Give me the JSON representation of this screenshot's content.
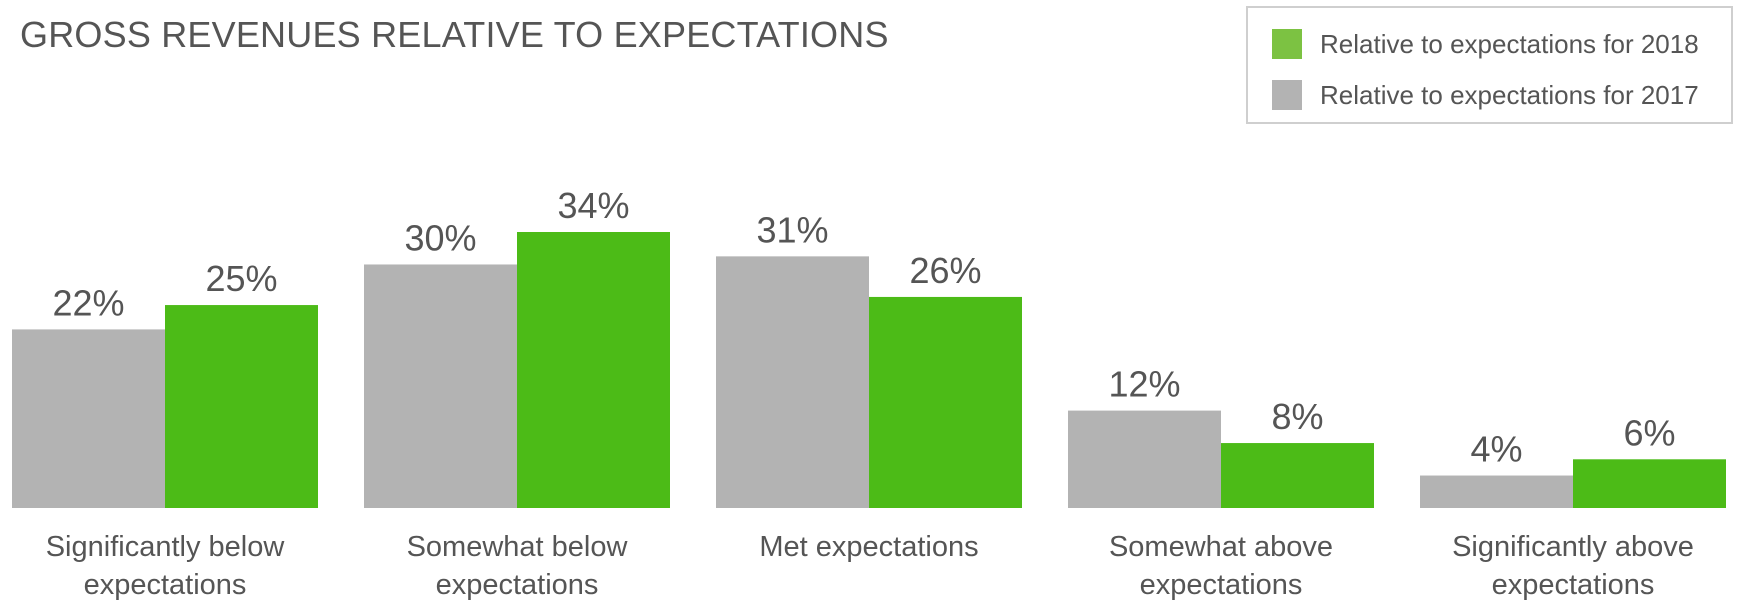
{
  "chart_data": {
    "type": "bar",
    "title": "GROSS REVENUES RELATIVE TO EXPECTATIONS",
    "xlabel": "",
    "ylabel": "",
    "ylim": [
      0,
      34
    ],
    "unit": "%",
    "categories": [
      [
        "Significantly below",
        "expectations"
      ],
      [
        "Somewhat below",
        "expectations"
      ],
      [
        "Met expectations"
      ],
      [
        "Somewhat above",
        "expectations"
      ],
      [
        "Significantly above",
        "expectations"
      ]
    ],
    "series": [
      {
        "name": "Relative to expectations for 2017",
        "color": "#b3b3b3",
        "values": [
          22,
          30,
          31,
          12,
          4
        ]
      },
      {
        "name": "Relative to expectations for 2018",
        "color": "#4cbb17",
        "values": [
          25,
          34,
          26,
          8,
          6
        ]
      }
    ],
    "legend": {
      "position": "top-right",
      "items": [
        {
          "label": "Relative to expectations for 2018",
          "color": "#7cc242"
        },
        {
          "label": "Relative to expectations for 2017",
          "color": "#b3b3b3"
        }
      ]
    },
    "grid": false
  }
}
